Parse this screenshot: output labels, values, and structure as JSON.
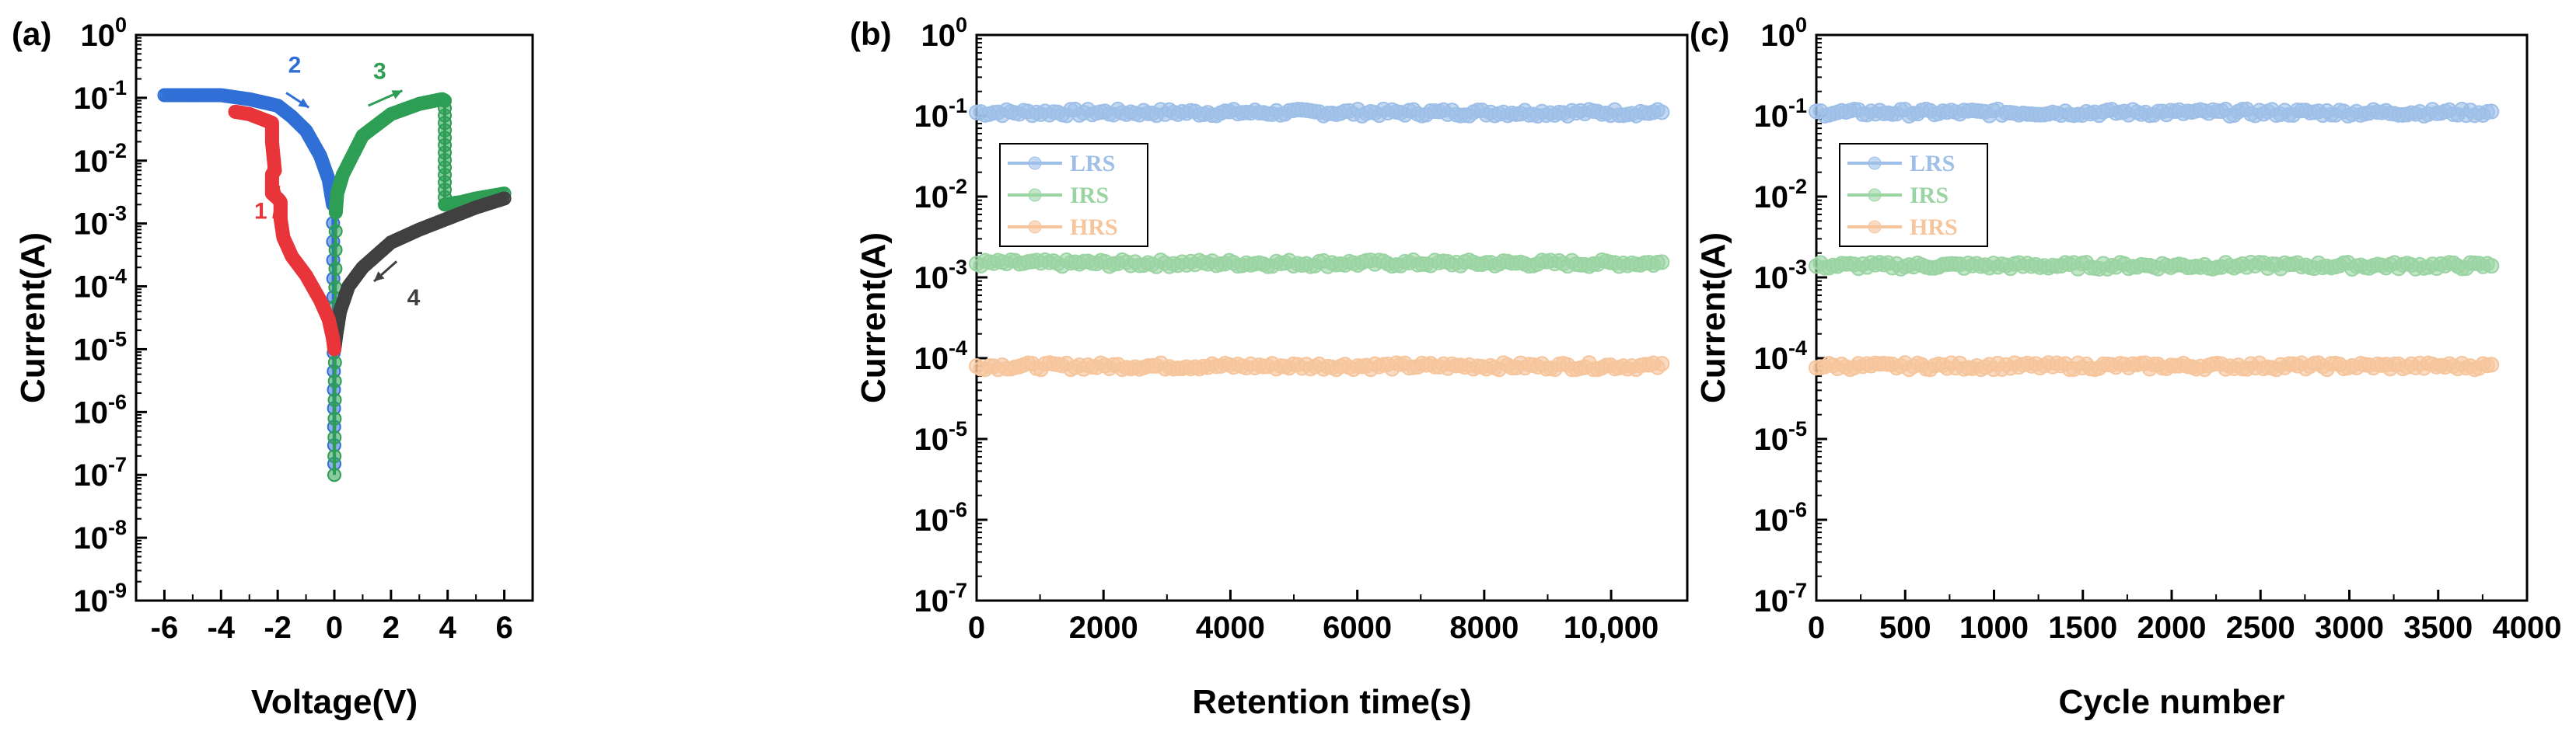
{
  "chart_data": [
    {
      "panel": "(a)",
      "type": "line",
      "scale": "log-y",
      "xlabel": "Voltage(V)",
      "ylabel": "Current(A)",
      "xlim": [
        -7,
        7
      ],
      "x_ticks": [
        -6,
        -4,
        -2,
        0,
        2,
        4,
        6
      ],
      "x_tick_labels": [
        "-6",
        "-4",
        "-2",
        "0",
        "2",
        "4",
        "6"
      ],
      "ylim_exp": [
        -9,
        0
      ],
      "y_tick_exps": [
        0,
        -1,
        -2,
        -3,
        -4,
        -5,
        -6,
        -7,
        -8,
        -9
      ],
      "y_tick_base": "10",
      "series": [
        {
          "name": "sweep-2",
          "color": "#2f6fd6",
          "points": [
            [
              -6,
              0.11
            ],
            [
              -5,
              0.11
            ],
            [
              -4,
              0.11
            ],
            [
              -3,
              0.095
            ],
            [
              -2,
              0.075
            ],
            [
              -1.5,
              0.05
            ],
            [
              -1,
              0.03
            ],
            [
              -0.5,
              0.012
            ],
            [
              -0.2,
              0.005
            ],
            [
              -0.05,
              0.002
            ],
            [
              0,
              1.5e-07
            ]
          ]
        },
        {
          "name": "sweep-3",
          "color": "#2e9e55",
          "points": [
            [
              0,
              1e-07
            ],
            [
              0.05,
              0.0015
            ],
            [
              0.1,
              0.003
            ],
            [
              0.3,
              0.006
            ],
            [
              1,
              0.025
            ],
            [
              2,
              0.055
            ],
            [
              3,
              0.08
            ],
            [
              3.8,
              0.095
            ],
            [
              3.9,
              0.09
            ],
            [
              3.9,
              0.002
            ],
            [
              4.5,
              0.0022
            ],
            [
              5,
              0.0025
            ],
            [
              6,
              0.003
            ]
          ]
        },
        {
          "name": "sweep-4",
          "color": "#404040",
          "points": [
            [
              6,
              0.0025
            ],
            [
              5,
              0.0018
            ],
            [
              4,
              0.0012
            ],
            [
              3,
              0.0008
            ],
            [
              2,
              0.0005
            ],
            [
              1,
              0.0002
            ],
            [
              0.5,
              0.0001
            ],
            [
              0.2,
              4e-05
            ],
            [
              0.05,
              1.5e-05
            ],
            [
              0,
              1e-05
            ]
          ]
        },
        {
          "name": "sweep-1",
          "color": "#e8353a",
          "points": [
            [
              0,
              1e-05
            ],
            [
              -0.05,
              1.5e-05
            ],
            [
              -0.2,
              3e-05
            ],
            [
              -0.5,
              6e-05
            ],
            [
              -1,
              0.00015
            ],
            [
              -1.5,
              0.0003
            ],
            [
              -1.8,
              0.0006
            ],
            [
              -1.9,
              0.0012
            ],
            [
              -1.9,
              0.0022
            ],
            [
              -2.0,
              0.0025
            ],
            [
              -2.2,
              0.003
            ],
            [
              -2.2,
              0.006
            ],
            [
              -2.1,
              0.007
            ],
            [
              -2.2,
              0.02
            ],
            [
              -2.2,
              0.04
            ],
            [
              -2.5,
              0.045
            ],
            [
              -3,
              0.055
            ],
            [
              -3.5,
              0.06
            ]
          ]
        }
      ],
      "annotations": [
        {
          "label": "1",
          "color": "#e8353a",
          "x": -2.1,
          "y": 0.001
        },
        {
          "label": "2",
          "color": "#2f6fd6",
          "x": -1.4,
          "y": 0.25
        },
        {
          "label": "3",
          "color": "#2e9e55",
          "x": 1.6,
          "y": 0.2
        },
        {
          "label": "4",
          "color": "#404040",
          "x": 2.7,
          "y": 5e-05
        }
      ]
    },
    {
      "panel": "(b)",
      "type": "scatter",
      "scale": "log-y",
      "xlabel": "Retention time(s)",
      "ylabel": "Current(A)",
      "xlim": [
        0,
        11200
      ],
      "x_ticks": [
        0,
        2000,
        4000,
        6000,
        8000,
        10000
      ],
      "x_tick_labels": [
        "0",
        "2000",
        "4000",
        "6000",
        "8000",
        "10,000"
      ],
      "ylim_exp": [
        -7,
        0
      ],
      "y_tick_exps": [
        0,
        -1,
        -2,
        -3,
        -4,
        -5,
        -6,
        -7
      ],
      "y_tick_base": "10",
      "x_range_data": [
        0,
        10800
      ],
      "series": [
        {
          "name": "LRS",
          "color": "#9dbfe8",
          "value": 0.11
        },
        {
          "name": "IRS",
          "color": "#9bd4a3",
          "value": 0.0015
        },
        {
          "name": "HRS",
          "color": "#f6c59c",
          "value": 8e-05
        }
      ]
    },
    {
      "panel": "(c)",
      "type": "scatter",
      "scale": "log-y",
      "xlabel": "Cycle number",
      "ylabel": "Current(A)",
      "xlim": [
        0,
        4000
      ],
      "x_ticks": [
        0,
        500,
        1000,
        1500,
        2000,
        2500,
        3000,
        3500,
        4000
      ],
      "x_tick_labels": [
        "0",
        "500",
        "1000",
        "1500",
        "2000",
        "2500",
        "3000",
        "3500",
        "4000"
      ],
      "ylim_exp": [
        -7,
        0
      ],
      "y_tick_exps": [
        0,
        -1,
        -2,
        -3,
        -4,
        -5,
        -6,
        -7
      ],
      "y_tick_base": "10",
      "x_range_data": [
        0,
        3800
      ],
      "series": [
        {
          "name": "LRS",
          "color": "#9dbfe8",
          "value": 0.11
        },
        {
          "name": "IRS",
          "color": "#9bd4a3",
          "value": 0.0014
        },
        {
          "name": "HRS",
          "color": "#f6c59c",
          "value": 8e-05
        }
      ]
    }
  ]
}
